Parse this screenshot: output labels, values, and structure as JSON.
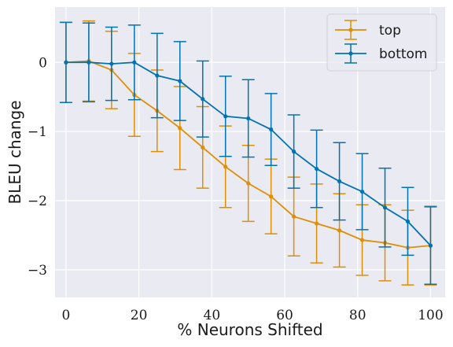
{
  "chart_data": {
    "type": "line",
    "xlabel": "% Neurons Shifted",
    "ylabel": "BLEU change",
    "xlim": [
      -3,
      104
    ],
    "ylim": [
      -3.4,
      0.8
    ],
    "xticks": [
      0,
      20,
      40,
      60,
      80,
      100
    ],
    "yticks": [
      0,
      -1,
      -2,
      -3
    ],
    "grid": true,
    "legend_position": "top-right",
    "background": "#eaeaf2",
    "x": [
      0,
      6.25,
      12.5,
      18.75,
      25,
      31.25,
      37.5,
      43.75,
      50,
      56.25,
      62.5,
      68.75,
      75,
      81.25,
      87.5,
      93.75,
      100
    ],
    "series": [
      {
        "name": "top",
        "color": "#de8f05",
        "values": [
          0.0,
          0.02,
          -0.11,
          -0.47,
          -0.7,
          -0.95,
          -1.23,
          -1.51,
          -1.75,
          -1.94,
          -2.23,
          -2.33,
          -2.43,
          -2.57,
          -2.61,
          -2.68,
          -2.65
        ],
        "errors": [
          0.58,
          0.58,
          0.56,
          0.6,
          0.59,
          0.6,
          0.59,
          0.59,
          0.55,
          0.54,
          0.57,
          0.57,
          0.53,
          0.51,
          0.55,
          0.54,
          0.57
        ]
      },
      {
        "name": "bottom",
        "color": "#0173b2",
        "values": [
          0.0,
          0.0,
          -0.02,
          0.0,
          -0.19,
          -0.27,
          -0.53,
          -0.78,
          -0.81,
          -0.97,
          -1.29,
          -1.54,
          -1.72,
          -1.87,
          -2.1,
          -2.3,
          -2.65
        ],
        "errors": [
          0.58,
          0.57,
          0.53,
          0.54,
          0.61,
          0.57,
          0.55,
          0.58,
          0.56,
          0.52,
          0.53,
          0.56,
          0.56,
          0.55,
          0.57,
          0.49,
          0.56
        ]
      }
    ]
  }
}
